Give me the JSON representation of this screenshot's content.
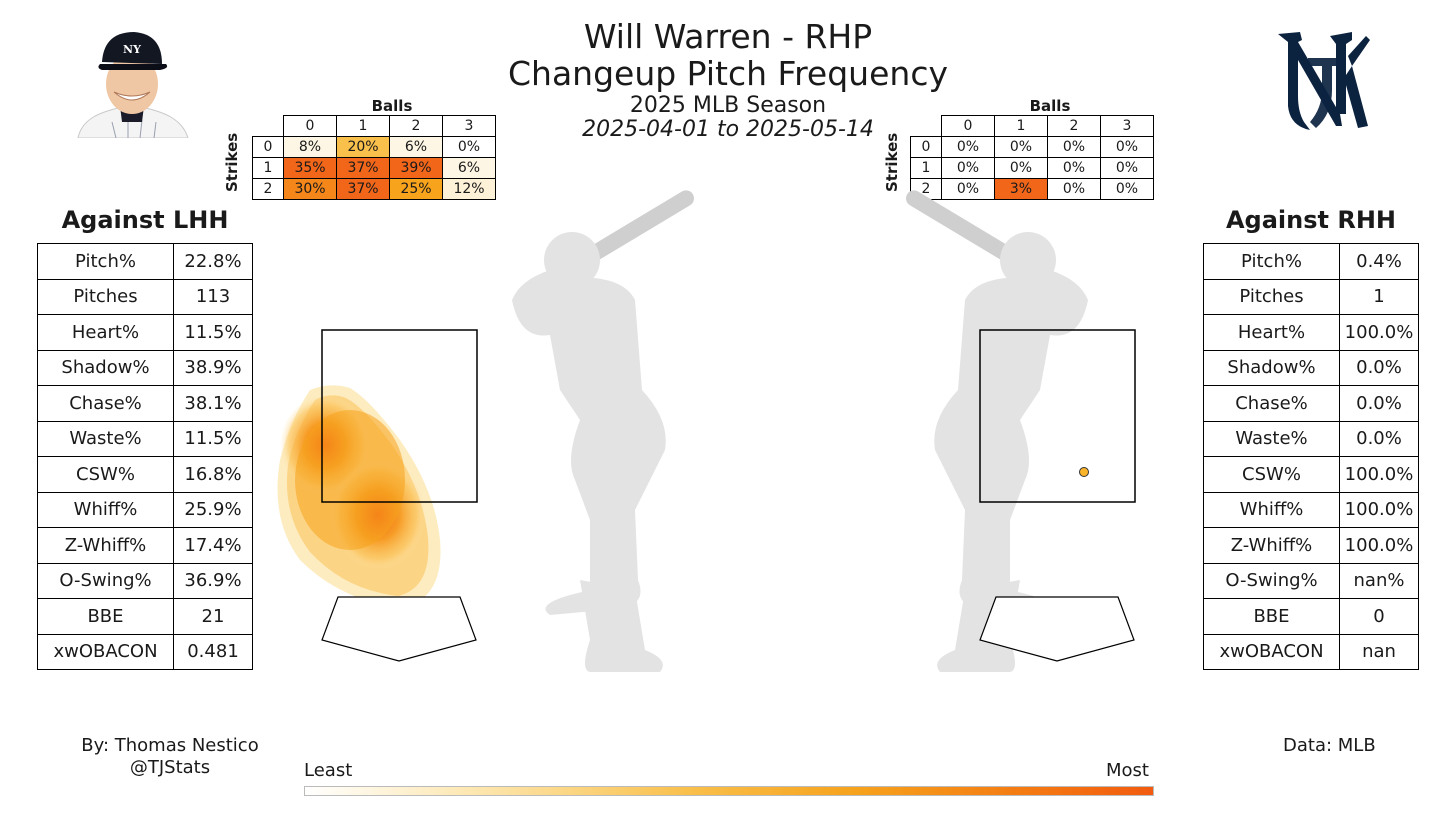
{
  "header": {
    "title_line1": "Will Warren - RHP",
    "title_line2": "Changeup Pitch Frequency",
    "season": "2025 MLB Season",
    "date_range": "2025-04-01 to 2025-05-14"
  },
  "images": {
    "headshot": "player-headshot",
    "logo": "yankees-logo",
    "logo_color": "#0c2340"
  },
  "count_tables": {
    "balls_label": "Balls",
    "strikes_label": "Strikes",
    "ball_headers": [
      "0",
      "1",
      "2",
      "3"
    ],
    "strike_headers": [
      "0",
      "1",
      "2"
    ],
    "lhh": [
      [
        "8%",
        "20%",
        "6%",
        "0%"
      ],
      [
        "35%",
        "37%",
        "39%",
        "6%"
      ],
      [
        "30%",
        "37%",
        "25%",
        "12%"
      ]
    ],
    "lhh_values": [
      [
        8,
        20,
        6,
        0
      ],
      [
        35,
        37,
        39,
        6
      ],
      [
        30,
        37,
        25,
        12
      ]
    ],
    "rhh": [
      [
        "0%",
        "0%",
        "0%",
        "0%"
      ],
      [
        "0%",
        "0%",
        "0%",
        "0%"
      ],
      [
        "0%",
        "3%",
        "0%",
        "0%"
      ]
    ],
    "rhh_values": [
      [
        0,
        0,
        0,
        0
      ],
      [
        0,
        0,
        0,
        0
      ],
      [
        0,
        3,
        0,
        0
      ]
    ]
  },
  "lhh_panel": {
    "title": "Against LHH",
    "stats": [
      {
        "label": "Pitch%",
        "value": "22.8%"
      },
      {
        "label": "Pitches",
        "value": "113"
      },
      {
        "label": "Heart%",
        "value": "11.5%"
      },
      {
        "label": "Shadow%",
        "value": "38.9%"
      },
      {
        "label": "Chase%",
        "value": "38.1%"
      },
      {
        "label": "Waste%",
        "value": "11.5%"
      },
      {
        "label": "CSW%",
        "value": "16.8%"
      },
      {
        "label": "Whiff%",
        "value": "25.9%"
      },
      {
        "label": "Z-Whiff%",
        "value": "17.4%"
      },
      {
        "label": "O-Swing%",
        "value": "36.9%"
      },
      {
        "label": "BBE",
        "value": "21"
      },
      {
        "label": "xwOBACON",
        "value": "0.481"
      }
    ]
  },
  "rhh_panel": {
    "title": "Against RHH",
    "stats": [
      {
        "label": "Pitch%",
        "value": "0.4%"
      },
      {
        "label": "Pitches",
        "value": "1"
      },
      {
        "label": "Heart%",
        "value": "100.0%"
      },
      {
        "label": "Shadow%",
        "value": "0.0%"
      },
      {
        "label": "Chase%",
        "value": "0.0%"
      },
      {
        "label": "Waste%",
        "value": "0.0%"
      },
      {
        "label": "CSW%",
        "value": "100.0%"
      },
      {
        "label": "Whiff%",
        "value": "100.0%"
      },
      {
        "label": "Z-Whiff%",
        "value": "100.0%"
      },
      {
        "label": "O-Swing%",
        "value": "nan%"
      },
      {
        "label": "BBE",
        "value": "0"
      },
      {
        "label": "xwOBACON",
        "value": "nan"
      }
    ]
  },
  "footer": {
    "author": "By: Thomas Nestico",
    "handle": "@TJStats",
    "source": "Data: MLB",
    "legend_least": "Least",
    "legend_most": "Most"
  },
  "chart_data": {
    "type": "heatmap",
    "description_units": "pitch location density, strike zone normalized 0-1",
    "colors": {
      "low": "#ffffff",
      "mid": "#f9b42a",
      "high": "#f25b10",
      "silhouette": "#e3e3e3"
    },
    "lhh_density_peaks": [
      {
        "x": -0.28,
        "y": 0.55,
        "weight": 0.9
      },
      {
        "x": 0.25,
        "y": 0.2,
        "weight": 1.0
      }
    ],
    "rhh_pitches": [
      {
        "x": 0.68,
        "y": 0.17
      }
    ]
  }
}
